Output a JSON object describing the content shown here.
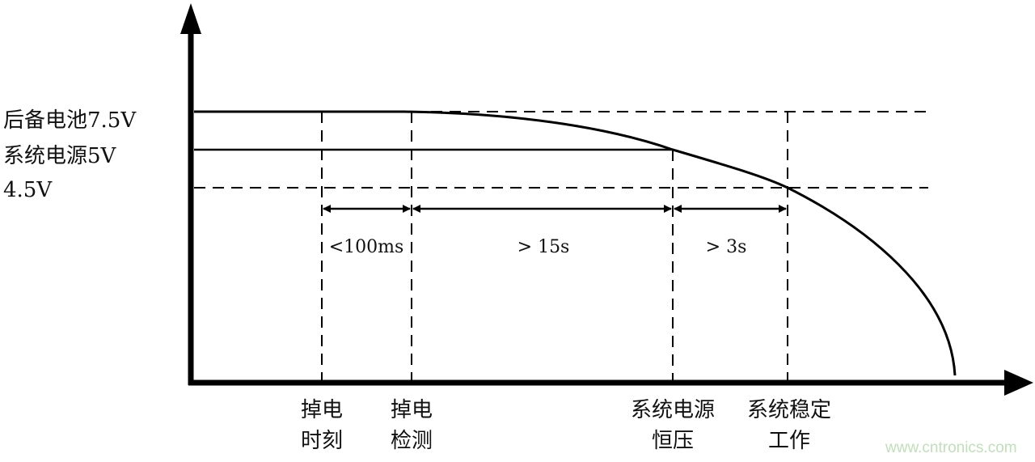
{
  "levels": {
    "backup_battery": "后备电池7.5V",
    "system_power": "系统电源5V",
    "threshold": "4.5V"
  },
  "durations": [
    "<100ms",
    "> 15s",
    "> 3s"
  ],
  "events": [
    {
      "line1": "掉电",
      "line2": "时刻"
    },
    {
      "line1": "掉电",
      "line2": "检测"
    },
    {
      "line1": "系统电源",
      "line2": "恒压"
    },
    {
      "line1": "系统稳定",
      "line2": "工作"
    }
  ],
  "watermark": "www.cntronics.com",
  "colors": {
    "line": "#000000",
    "watermark": "#bfe0b8"
  }
}
